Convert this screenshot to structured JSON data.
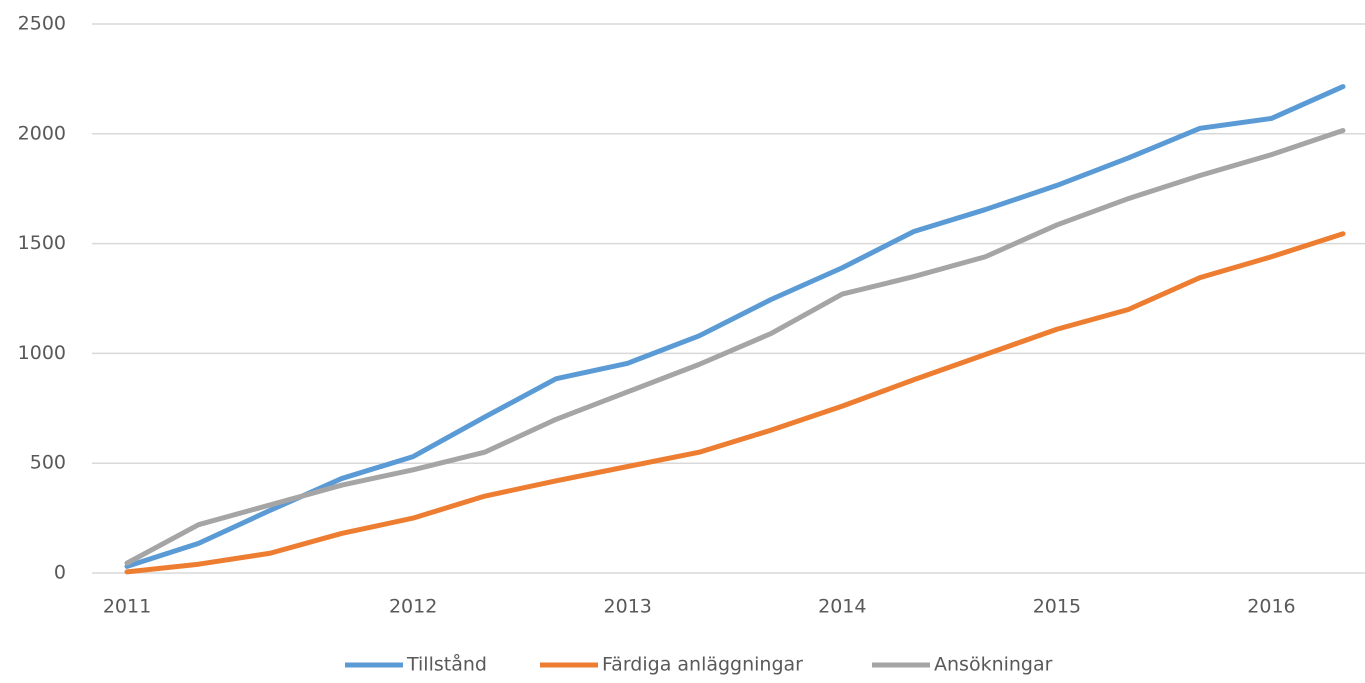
{
  "chart_data": {
    "type": "line",
    "categories": [
      "2011",
      null,
      null,
      null,
      "2012",
      null,
      null,
      "2013",
      null,
      null,
      "2014",
      null,
      null,
      "2015",
      null,
      null,
      "2016",
      null
    ],
    "series": [
      {
        "name": "Tillstånd",
        "color": "#5b9bd5",
        "values": [
          30,
          135,
          285,
          430,
          530,
          710,
          885,
          955,
          1080,
          1245,
          1390,
          1555,
          1655,
          1765,
          1890,
          2025,
          2070,
          2215
        ]
      },
      {
        "name": "Färdiga anläggningar",
        "color": "#ed7d31",
        "values": [
          5,
          40,
          90,
          180,
          250,
          350,
          420,
          485,
          550,
          650,
          760,
          880,
          995,
          1110,
          1200,
          1345,
          1440,
          1545
        ]
      },
      {
        "name": "Ansökningar",
        "color": "#a5a5a5",
        "values": [
          45,
          220,
          310,
          400,
          470,
          550,
          700,
          825,
          950,
          1090,
          1270,
          1350,
          1440,
          1585,
          1705,
          1810,
          1905,
          2015
        ]
      }
    ],
    "ylim": [
      0,
      2500
    ],
    "yticks": [
      0,
      500,
      1000,
      1500,
      2000,
      2500
    ],
    "grid": true,
    "legend": "bottom"
  }
}
